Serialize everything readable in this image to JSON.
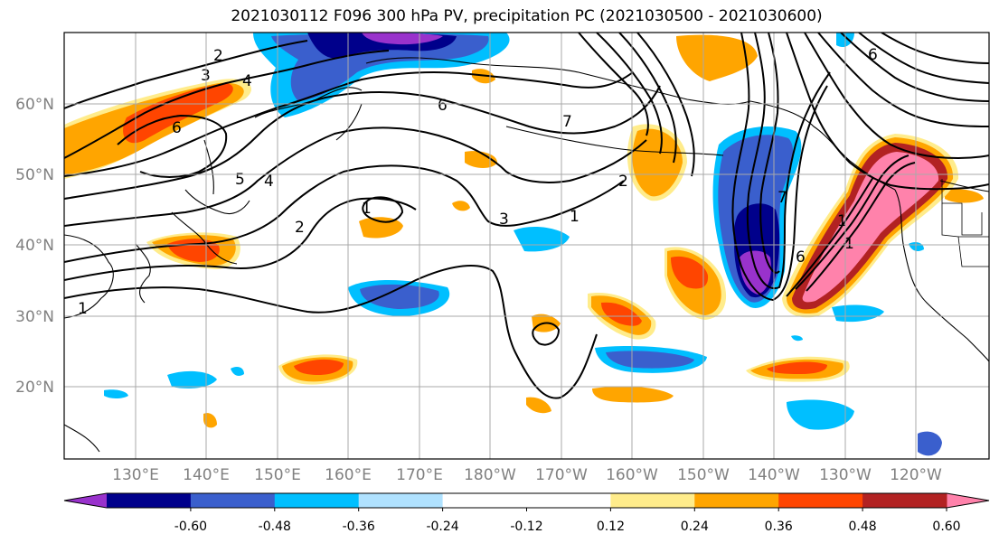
{
  "title": "2021030112 F096 300 hPa PV, precipitation PC (2021030500 - 2021030600)",
  "lat_labels": [
    "60°N",
    "50°N",
    "40°N",
    "30°N",
    "20°N"
  ],
  "lon_labels": [
    "130°E",
    "140°E",
    "150°E",
    "160°E",
    "170°E",
    "180°W",
    "170°W",
    "160°W",
    "150°W",
    "140°W",
    "130°W",
    "120°W"
  ],
  "colorbar": {
    "colors": [
      "#9932CC",
      "#00008B",
      "#3A5FCD",
      "#00BFFF",
      "#B0E2FF",
      "#FFFFFF",
      "#FFFFFF",
      "#FFEC8B",
      "#FFA500",
      "#FF4500",
      "#B22222",
      "#FF82AB"
    ],
    "tick_labels": [
      "-0.60",
      "-0.48",
      "-0.36",
      "-0.24",
      "-0.12",
      "0.12",
      "0.24",
      "0.36",
      "0.48",
      "0.60"
    ]
  },
  "contour_labels": [
    "2",
    "3",
    "4",
    "6",
    "6",
    "5",
    "4",
    "1",
    "2",
    "3",
    "1",
    "2",
    "7",
    "1",
    "6",
    "7",
    "1",
    "6",
    "1"
  ]
}
